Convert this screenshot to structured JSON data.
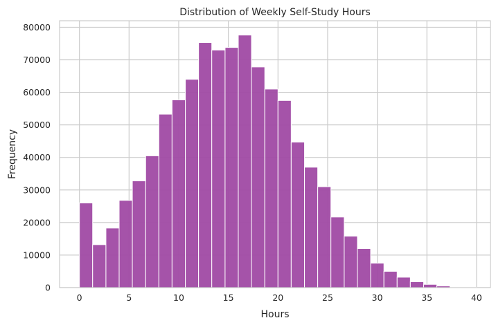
{
  "chart_data": {
    "type": "bar",
    "subtype": "histogram",
    "title": "Distribution of Weekly Self-Study Hours",
    "xlabel": "Hours",
    "ylabel": "Frequency",
    "xlim": [
      -2.0,
      41.4
    ],
    "ylim": [
      0,
      82000
    ],
    "xticks": [
      0,
      5,
      10,
      15,
      20,
      25,
      30,
      35,
      40
    ],
    "yticks": [
      0,
      10000,
      20000,
      30000,
      40000,
      50000,
      60000,
      70000,
      80000
    ],
    "grid": true,
    "bar_color": "#a04aa4",
    "bin_edges": [
      0,
      1.33,
      2.67,
      4.0,
      5.33,
      6.67,
      8.0,
      9.33,
      10.67,
      12.0,
      13.33,
      14.67,
      16.0,
      17.33,
      18.67,
      20.0,
      21.33,
      22.67,
      24.0,
      25.33,
      26.67,
      28.0,
      29.33,
      30.67,
      32.0,
      33.33,
      34.67,
      36.0,
      37.33,
      38.67,
      40.0
    ],
    "values": [
      26000,
      13200,
      18300,
      26800,
      32800,
      40500,
      53300,
      57700,
      64000,
      75300,
      73000,
      73800,
      77600,
      67800,
      61000,
      57500,
      44700,
      37000,
      31000,
      21700,
      15800,
      12000,
      7500,
      5000,
      3200,
      1800,
      1000,
      500,
      200,
      100
    ]
  }
}
